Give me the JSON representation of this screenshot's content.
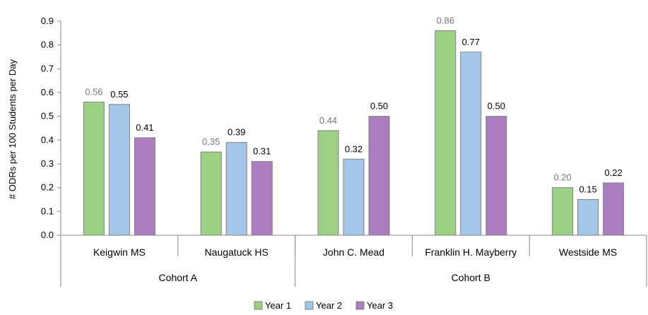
{
  "chart_data": {
    "type": "bar",
    "title": "",
    "xlabel": "",
    "ylabel": "# ODRs per 100 Students per Day",
    "ylim": [
      0,
      0.9
    ],
    "yticks": [
      "0.0",
      "0.1",
      "0.2",
      "0.3",
      "0.4",
      "0.5",
      "0.6",
      "0.7",
      "0.8",
      "0.9"
    ],
    "categories": [
      "Keigwin MS",
      "Naugatuck HS",
      "John C. Mead",
      "Franklin H. Mayberry",
      "Westside MS"
    ],
    "groups": [
      {
        "label": "Cohort A",
        "categories": [
          "Keigwin MS",
          "Naugatuck HS"
        ]
      },
      {
        "label": "Cohort B",
        "categories": [
          "John C. Mead",
          "Franklin H. Mayberry",
          "Westside MS"
        ]
      }
    ],
    "series": [
      {
        "name": "Year 1",
        "color": "#9bd085",
        "values": [
          0.56,
          0.35,
          0.44,
          0.86,
          0.2
        ],
        "labels": [
          "0.56",
          "0.35",
          "0.44",
          "0.86",
          "0.20"
        ],
        "label_color": "#777777"
      },
      {
        "name": "Year 2",
        "color": "#a4c6e8",
        "values": [
          0.55,
          0.39,
          0.32,
          0.77,
          0.15
        ],
        "labels": [
          "0.55",
          "0.39",
          "0.32",
          "0.77",
          "0.15"
        ],
        "label_color": "#000000"
      },
      {
        "name": "Year 3",
        "color": "#ab7dc0",
        "values": [
          0.41,
          0.31,
          0.5,
          0.5,
          0.22
        ],
        "labels": [
          "0.41",
          "0.31",
          "0.50",
          "0.50",
          "0.22"
        ],
        "label_color": "#000000"
      }
    ],
    "grid": false,
    "legend_position": "bottom",
    "bar_border_color": "#808080",
    "axis_color": "#888888"
  }
}
